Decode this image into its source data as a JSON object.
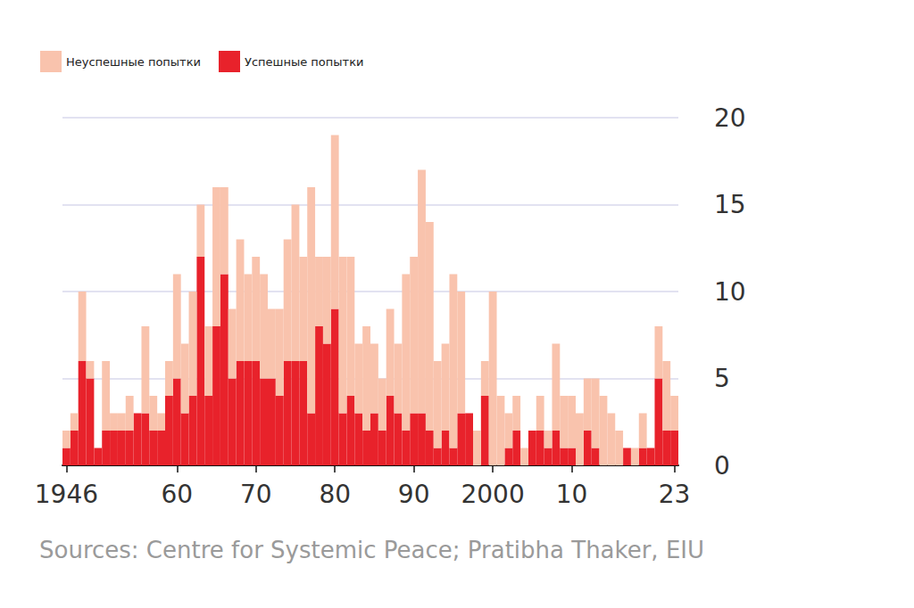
{
  "chart_data": {
    "type": "bar",
    "stacked": true,
    "grid": true,
    "legend": "top-left",
    "source": "Sources: Centre for Systemic Peace; Pratibha Thaker, EIU",
    "categories": [
      "1946",
      null,
      null,
      null,
      null,
      null,
      null,
      null,
      null,
      null,
      null,
      null,
      null,
      null,
      "60",
      null,
      null,
      null,
      null,
      null,
      null,
      null,
      null,
      null,
      "70",
      null,
      null,
      null,
      null,
      null,
      null,
      null,
      null,
      null,
      "80",
      null,
      null,
      null,
      null,
      null,
      null,
      null,
      null,
      null,
      "90",
      null,
      null,
      null,
      null,
      null,
      null,
      null,
      null,
      null,
      "2000",
      null,
      null,
      null,
      null,
      null,
      null,
      null,
      null,
      null,
      "10",
      null,
      null,
      null,
      null,
      null,
      null,
      null,
      null,
      null,
      null,
      null,
      null,
      "23"
    ],
    "series": [
      {
        "name": "Неуспешные попытки",
        "color": "#f9c3ad",
        "values": [
          1,
          1,
          4,
          1,
          0,
          4,
          1,
          1,
          2,
          0,
          5,
          2,
          1,
          2,
          6,
          4,
          6,
          3,
          4,
          8,
          5,
          4,
          7,
          5,
          6,
          6,
          4,
          5,
          7,
          9,
          6,
          13,
          4,
          5,
          10,
          9,
          8,
          4,
          6,
          4,
          3,
          5,
          4,
          9,
          9,
          14,
          12,
          5,
          5,
          10,
          7,
          0,
          2,
          2,
          10,
          4,
          2,
          2,
          1,
          0,
          2,
          1,
          5,
          3,
          3,
          3,
          3,
          4,
          4,
          3,
          2,
          0,
          1,
          2,
          0,
          3,
          4,
          2
        ]
      },
      {
        "name": "Успешные попытки",
        "color": "#e8222b",
        "values": [
          1,
          2,
          6,
          5,
          1,
          2,
          2,
          2,
          2,
          3,
          3,
          2,
          2,
          4,
          5,
          3,
          4,
          12,
          4,
          8,
          11,
          5,
          6,
          6,
          6,
          5,
          5,
          4,
          6,
          6,
          6,
          3,
          8,
          7,
          9,
          3,
          4,
          3,
          2,
          3,
          2,
          4,
          3,
          2,
          3,
          3,
          2,
          1,
          2,
          1,
          3,
          3,
          0,
          4,
          0,
          0,
          1,
          2,
          0,
          2,
          2,
          1,
          2,
          1,
          1,
          0,
          2,
          1,
          0,
          0,
          0,
          1,
          0,
          1,
          1,
          5,
          2,
          2
        ]
      }
    ],
    "ylim": [
      0,
      20
    ],
    "yticks": [
      0,
      5,
      10,
      15,
      20
    ]
  }
}
